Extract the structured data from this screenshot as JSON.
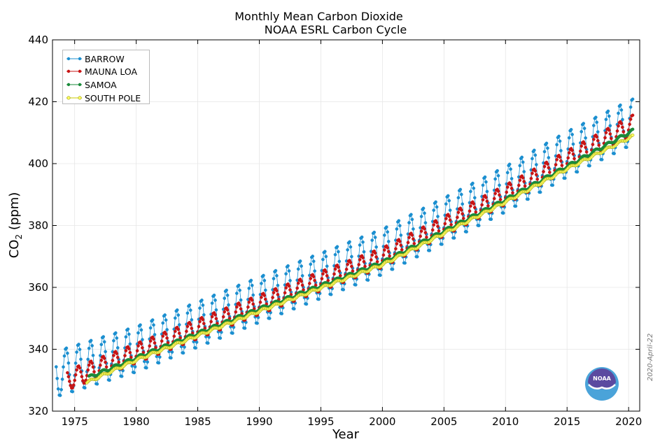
{
  "title_line1": "Monthly Mean Carbon Dioxide",
  "title_line2": "NOAA ESRL Carbon Cycle",
  "side_date": "2020-April-22",
  "logo_text": "NOAA",
  "chart_data": {
    "type": "line",
    "title": "Monthly Mean Carbon Dioxide NOAA ESRL Carbon Cycle",
    "xlabel": "Year",
    "ylabel": "CO2 (ppm)",
    "xlim": [
      1973.2,
      2020.9
    ],
    "ylim": [
      320,
      440
    ],
    "x_ticks": [
      1975,
      1980,
      1985,
      1990,
      1995,
      2000,
      2005,
      2010,
      2015,
      2020
    ],
    "y_ticks": [
      320,
      340,
      360,
      380,
      400,
      420,
      440
    ],
    "grid": true,
    "legend_position": "top-left",
    "series": [
      {
        "name": "BARROW",
        "color": "#1b8fd0",
        "marker_fill": "#1b8fd0",
        "start": 1973.5,
        "end": 2020.3,
        "amp": 7.5,
        "offset": 1.5,
        "anchors": [
          [
            1973.5,
            330.5
          ],
          [
            1980,
            338.5
          ],
          [
            1990,
            354.5
          ],
          [
            2000,
            370.0
          ],
          [
            2010,
            390.2
          ],
          [
            2015,
            401.5
          ],
          [
            2020.3,
            412.0
          ]
        ]
      },
      {
        "name": "MAUNA LOA",
        "color": "#c81414",
        "marker_fill": "#c81414",
        "start": 1974.4,
        "end": 2020.3,
        "amp": 3.2,
        "offset": 0.0,
        "anchors": [
          [
            1974.4,
            330.0
          ],
          [
            1980,
            338.7
          ],
          [
            1990,
            354.4
          ],
          [
            2000,
            369.6
          ],
          [
            2010,
            389.9
          ],
          [
            2015,
            401.0
          ],
          [
            2020.3,
            412.5
          ]
        ]
      },
      {
        "name": "SAMOA",
        "color": "#1a8a3a",
        "marker_fill": "#1a8a3a",
        "start": 1976.2,
        "end": 2020.3,
        "amp": 0.5,
        "offset": 0.0,
        "anchors": [
          [
            1976.2,
            331.0
          ],
          [
            1980,
            337.2
          ],
          [
            1990,
            353.0
          ],
          [
            2000,
            368.0
          ],
          [
            2010,
            388.3
          ],
          [
            2015,
            399.1
          ],
          [
            2020.3,
            410.6
          ]
        ]
      },
      {
        "name": "SOUTH POLE",
        "color": "#c8c800",
        "marker_fill": "#ffff66",
        "start": 1976.0,
        "end": 2020.3,
        "amp": 0.4,
        "offset": 0.0,
        "anchors": [
          [
            1976.0,
            329.3
          ],
          [
            1980,
            336.5
          ],
          [
            1990,
            352.3
          ],
          [
            2000,
            367.3
          ],
          [
            2010,
            387.6
          ],
          [
            2015,
            398.3
          ],
          [
            2020.3,
            408.8
          ]
        ]
      }
    ]
  }
}
